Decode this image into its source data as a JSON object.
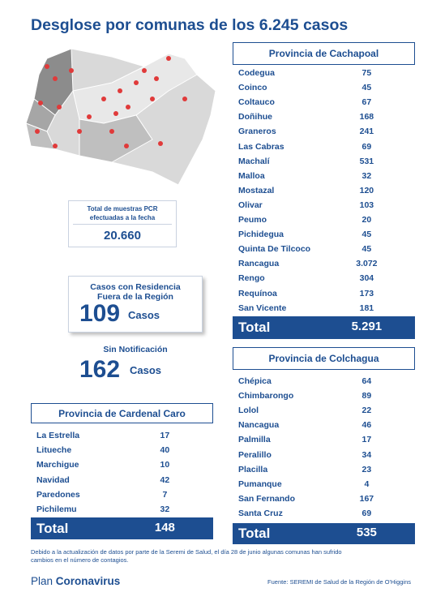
{
  "title": "Desglose por comunas de los 6.245 casos",
  "pcr": {
    "label_lines": [
      "Total de muestras PCR",
      "efectuadas a la fecha"
    ],
    "value": "20.660"
  },
  "outside": {
    "label_lines": [
      "Casos con Residencia",
      "Fuera de la Región"
    ],
    "value": "109",
    "unit": "Casos"
  },
  "no_notification": {
    "label": "Sin Notificación",
    "value": "162",
    "unit": "Casos"
  },
  "cachapoal": {
    "title": "Provincia de Cachapoal",
    "total_label": "Total",
    "total": "5.291",
    "rows": [
      [
        "Codegua",
        "75"
      ],
      [
        "Coinco",
        "45"
      ],
      [
        "Coltauco",
        "67"
      ],
      [
        "Doñihue",
        "168"
      ],
      [
        "Graneros",
        "241"
      ],
      [
        "Las Cabras",
        "69"
      ],
      [
        "Machalí",
        "531"
      ],
      [
        "Malloa",
        "32"
      ],
      [
        "Mostazal",
        "120"
      ],
      [
        "Olivar",
        "103"
      ],
      [
        "Peumo",
        "20"
      ],
      [
        "Pichidegua",
        "45"
      ],
      [
        "Quinta De Tilcoco",
        "45"
      ],
      [
        "Rancagua",
        "3.072"
      ],
      [
        "Rengo",
        "304"
      ],
      [
        "Requínoa",
        "173"
      ],
      [
        "San Vicente",
        "181"
      ]
    ]
  },
  "colchagua": {
    "title": "Provincia de Colchagua",
    "total_label": "Total",
    "total": "535",
    "rows": [
      [
        "Chépica",
        "64"
      ],
      [
        "Chimbarongo",
        "89"
      ],
      [
        "Lolol",
        "22"
      ],
      [
        "Nancagua",
        "46"
      ],
      [
        "Palmilla",
        "17"
      ],
      [
        "Peralillo",
        "34"
      ],
      [
        "Placilla",
        "23"
      ],
      [
        "Pumanque",
        "4"
      ],
      [
        "San Fernando",
        "167"
      ],
      [
        "Santa Cruz",
        "69"
      ]
    ]
  },
  "cardenal_caro": {
    "title": "Provincia de Cardenal Caro",
    "total_label": "Total",
    "total": "148",
    "rows": [
      [
        "La Estrella",
        "17"
      ],
      [
        "Litueche",
        "40"
      ],
      [
        "Marchigue",
        "10"
      ],
      [
        "Navidad",
        "42"
      ],
      [
        "Paredones",
        "7"
      ],
      [
        "Pichilemu",
        "32"
      ]
    ]
  },
  "footnote_lines": [
    "Debido a la actualización de datos por parte de la Seremi de Salud, el día 28 de junio algunas comunas han sufrido",
    "cambios en el número de contagios."
  ],
  "brand": {
    "plan": "Plan",
    "name": "Coronavirus"
  },
  "source": "Fuente: SEREMI de Salud de la Región de O'Higgins"
}
